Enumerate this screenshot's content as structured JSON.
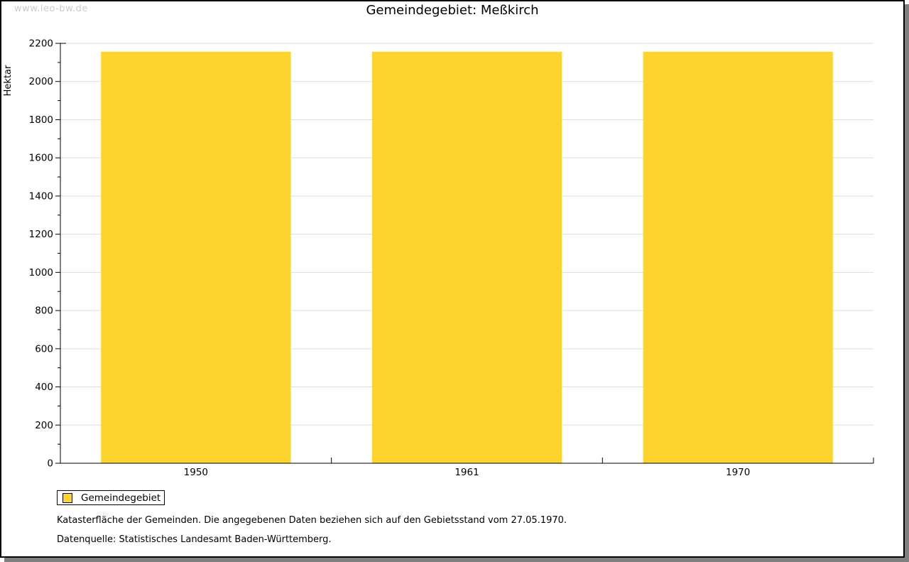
{
  "page": {
    "watermark": "www.leo-bw.de"
  },
  "chart_data": {
    "type": "bar",
    "title": "Gemeindegebiet: Meßkirch",
    "ylabel": "Hektar",
    "xlabel": "",
    "categories": [
      "1950",
      "1961",
      "1970"
    ],
    "series": [
      {
        "name": "Gemeindegebiet",
        "values": [
          2156,
          2156,
          2156
        ]
      }
    ],
    "ylim": [
      0,
      2200
    ],
    "ytick_major": 200,
    "ytick_minor": 100,
    "grid": true,
    "legend_position": "bottom-left",
    "colors": {
      "bar": "#FCD42D",
      "grid": "#DDDDDD",
      "axis": "#000000"
    }
  },
  "footer": {
    "line1": "Katasterfläche der Gemeinden. Die angegebenen Daten beziehen sich auf den Gebietsstand vom 27.05.1970.",
    "line2": "Datenquelle: Statistisches Landesamt Baden-Württemberg."
  }
}
